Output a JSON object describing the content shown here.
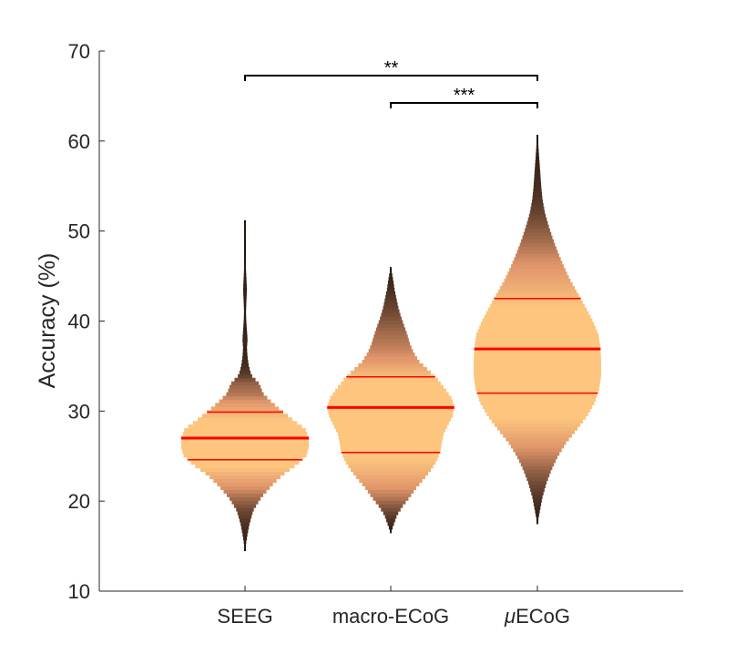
{
  "colors": {
    "background": "#ffffff",
    "axis": "#262626",
    "median_line": "#ff0000",
    "quartile_line": "#ff0000",
    "fill_center": "#fdc57e",
    "fill_mid": "#e0956a",
    "fill_outer": "#1c120c"
  },
  "chart_data": {
    "type": "violin",
    "title": "",
    "xlabel": "",
    "ylabel": "Accuracy (%)",
    "ylim": [
      10,
      70
    ],
    "yticks": [
      10,
      20,
      30,
      40,
      50,
      60,
      70
    ],
    "grid": false,
    "categories": [
      "SEEG",
      "macro-ECoG",
      "μECoG"
    ],
    "category_labels": [
      {
        "prefix": "",
        "italic": "",
        "rest": "SEEG"
      },
      {
        "prefix": "",
        "italic": "",
        "rest": "macro-ECoG"
      },
      {
        "prefix": "",
        "italic": "μ",
        "rest": "ECoG"
      }
    ],
    "series": [
      {
        "category": "SEEG",
        "median": 27.0,
        "q1": 24.6,
        "q3": 29.9,
        "min": 14.5,
        "max": 51.2,
        "density": [
          [
            14.5,
            0.0
          ],
          [
            16,
            0.03
          ],
          [
            17.5,
            0.07
          ],
          [
            19,
            0.13
          ],
          [
            20.5,
            0.26
          ],
          [
            22,
            0.45
          ],
          [
            23,
            0.6
          ],
          [
            24,
            0.8
          ],
          [
            25,
            0.96
          ],
          [
            26,
            1.0
          ],
          [
            27,
            1.0
          ],
          [
            28,
            0.95
          ],
          [
            29,
            0.76
          ],
          [
            30,
            0.58
          ],
          [
            31,
            0.42
          ],
          [
            32,
            0.28
          ],
          [
            33,
            0.23
          ],
          [
            34,
            0.1
          ],
          [
            35,
            0.06
          ],
          [
            36,
            0.04
          ],
          [
            37,
            0.03
          ],
          [
            38,
            0.04
          ],
          [
            39,
            0.03
          ],
          [
            40,
            0.02
          ],
          [
            41,
            0.015
          ],
          [
            42,
            0.02
          ],
          [
            43.5,
            0.03
          ],
          [
            45,
            0.02
          ],
          [
            46.5,
            0.01
          ],
          [
            47.5,
            0.005
          ],
          [
            48.5,
            0.003
          ],
          [
            49.5,
            0.012
          ],
          [
            50.5,
            0.008
          ],
          [
            51.2,
            0.0
          ]
        ]
      },
      {
        "category": "macro-ECoG",
        "median": 30.4,
        "q1": 25.4,
        "q3": 33.8,
        "min": 16.5,
        "max": 46.0,
        "density": [
          [
            16.5,
            0.0
          ],
          [
            17.5,
            0.05
          ],
          [
            18.5,
            0.1
          ],
          [
            19.5,
            0.19
          ],
          [
            20.5,
            0.3
          ],
          [
            21.5,
            0.4
          ],
          [
            22.5,
            0.52
          ],
          [
            23.5,
            0.63
          ],
          [
            24.5,
            0.72
          ],
          [
            25.5,
            0.78
          ],
          [
            26.5,
            0.8
          ],
          [
            27.5,
            0.83
          ],
          [
            28.5,
            0.9
          ],
          [
            29.5,
            0.97
          ],
          [
            30.5,
            1.0
          ],
          [
            31.5,
            0.95
          ],
          [
            32.5,
            0.85
          ],
          [
            33.5,
            0.74
          ],
          [
            34.5,
            0.6
          ],
          [
            35.5,
            0.45
          ],
          [
            36.5,
            0.36
          ],
          [
            37.5,
            0.3
          ],
          [
            38.5,
            0.26
          ],
          [
            39.5,
            0.21
          ],
          [
            40.5,
            0.16
          ],
          [
            41.5,
            0.12
          ],
          [
            42.5,
            0.09
          ],
          [
            43.5,
            0.06
          ],
          [
            44.5,
            0.04
          ],
          [
            45.5,
            0.015
          ],
          [
            46.0,
            0.0
          ]
        ]
      },
      {
        "category": "μECoG",
        "median": 36.9,
        "q1": 32.0,
        "q3": 42.5,
        "min": 17.5,
        "max": 60.8,
        "density": [
          [
            17.5,
            0.0
          ],
          [
            19,
            0.04
          ],
          [
            20.5,
            0.08
          ],
          [
            22,
            0.14
          ],
          [
            23.5,
            0.22
          ],
          [
            25,
            0.32
          ],
          [
            26.5,
            0.45
          ],
          [
            28,
            0.62
          ],
          [
            29.5,
            0.78
          ],
          [
            31,
            0.9
          ],
          [
            32.5,
            0.97
          ],
          [
            34,
            1.0
          ],
          [
            35.5,
            1.0
          ],
          [
            37,
            0.99
          ],
          [
            38.5,
            0.96
          ],
          [
            40,
            0.87
          ],
          [
            41.5,
            0.76
          ],
          [
            43,
            0.64
          ],
          [
            44.5,
            0.52
          ],
          [
            46,
            0.42
          ],
          [
            47.5,
            0.33
          ],
          [
            49,
            0.25
          ],
          [
            50.5,
            0.18
          ],
          [
            52,
            0.12
          ],
          [
            53.5,
            0.08
          ],
          [
            55,
            0.06
          ],
          [
            56.5,
            0.045
          ],
          [
            58,
            0.03
          ],
          [
            59.5,
            0.015
          ],
          [
            60.8,
            0.0
          ]
        ]
      }
    ],
    "significance": [
      {
        "from": "SEEG",
        "to": "μECoG",
        "label": "**"
      },
      {
        "from": "macro-ECoG",
        "to": "μECoG",
        "label": "***"
      }
    ]
  }
}
